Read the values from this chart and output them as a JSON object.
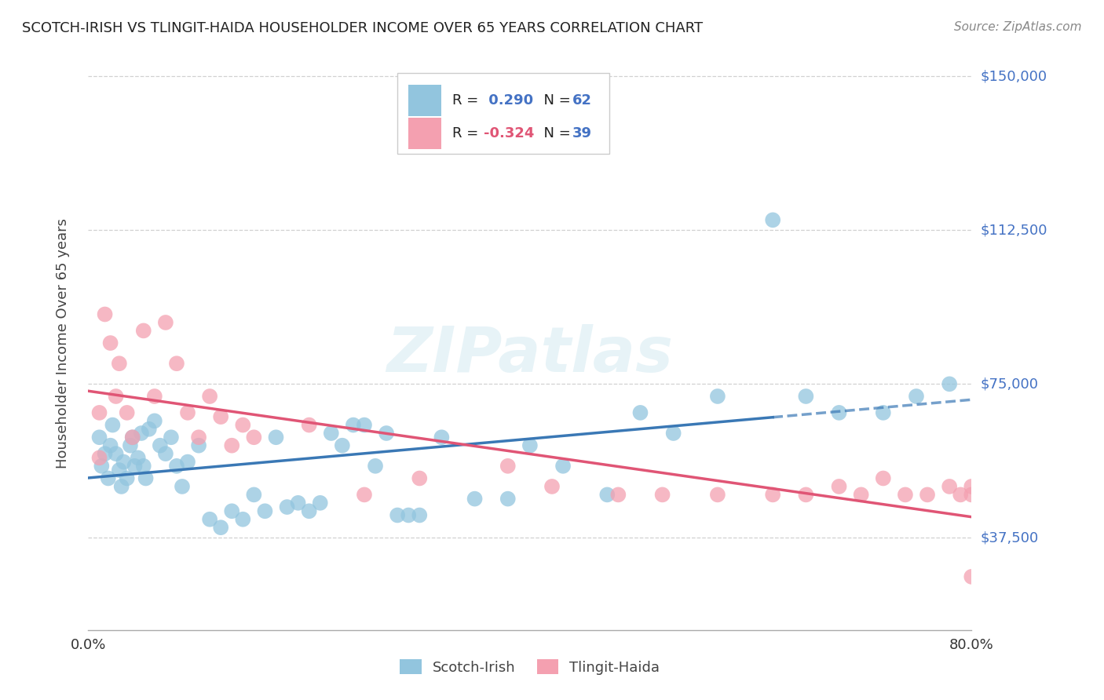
{
  "title": "SCOTCH-IRISH VS TLINGIT-HAIDA HOUSEHOLDER INCOME OVER 65 YEARS CORRELATION CHART",
  "source": "Source: ZipAtlas.com",
  "ylabel": "Householder Income Over 65 years",
  "xlim": [
    0.0,
    80.0
  ],
  "ylim": [
    15000,
    155000
  ],
  "yticks": [
    37500,
    75000,
    112500,
    150000
  ],
  "ytick_labels": [
    "$37,500",
    "$75,000",
    "$112,500",
    "$150,000"
  ],
  "xticks": [
    0,
    10,
    20,
    30,
    40,
    50,
    60,
    70,
    80
  ],
  "blue_R": 0.29,
  "blue_N": 62,
  "pink_R": -0.324,
  "pink_N": 39,
  "blue_color": "#92c5de",
  "pink_color": "#f4a0b0",
  "trend_line_color_blue": "#3a78b5",
  "trend_line_color_pink": "#e05575",
  "watermark": "ZIPatlas",
  "blue_scatter_x": [
    1.0,
    1.2,
    1.5,
    1.8,
    2.0,
    2.2,
    2.5,
    2.8,
    3.0,
    3.2,
    3.5,
    3.8,
    4.0,
    4.2,
    4.5,
    4.8,
    5.0,
    5.2,
    5.5,
    6.0,
    6.5,
    7.0,
    7.5,
    8.0,
    8.5,
    9.0,
    10.0,
    11.0,
    12.0,
    13.0,
    14.0,
    15.0,
    16.0,
    17.0,
    18.0,
    19.0,
    20.0,
    21.0,
    22.0,
    23.0,
    24.0,
    25.0,
    26.0,
    27.0,
    28.0,
    29.0,
    30.0,
    32.0,
    35.0,
    38.0,
    40.0,
    43.0,
    47.0,
    50.0,
    53.0,
    57.0,
    62.0,
    65.0,
    68.0,
    72.0,
    75.0,
    78.0
  ],
  "blue_scatter_y": [
    62000,
    55000,
    58000,
    52000,
    60000,
    65000,
    58000,
    54000,
    50000,
    56000,
    52000,
    60000,
    62000,
    55000,
    57000,
    63000,
    55000,
    52000,
    64000,
    66000,
    60000,
    58000,
    62000,
    55000,
    50000,
    56000,
    60000,
    42000,
    40000,
    44000,
    42000,
    48000,
    44000,
    62000,
    45000,
    46000,
    44000,
    46000,
    63000,
    60000,
    65000,
    65000,
    55000,
    63000,
    43000,
    43000,
    43000,
    62000,
    47000,
    47000,
    60000,
    55000,
    48000,
    68000,
    63000,
    72000,
    115000,
    72000,
    68000,
    68000,
    72000,
    75000
  ],
  "pink_scatter_x": [
    1.0,
    1.0,
    1.5,
    2.0,
    2.5,
    2.8,
    3.5,
    4.0,
    5.0,
    6.0,
    7.0,
    8.0,
    9.0,
    10.0,
    11.0,
    12.0,
    13.0,
    14.0,
    15.0,
    20.0,
    25.0,
    30.0,
    38.0,
    42.0,
    48.0,
    52.0,
    57.0,
    62.0,
    65.0,
    68.0,
    70.0,
    72.0,
    74.0,
    76.0,
    78.0,
    79.0,
    80.0,
    80.0,
    80.0
  ],
  "pink_scatter_y": [
    68000,
    57000,
    92000,
    85000,
    72000,
    80000,
    68000,
    62000,
    88000,
    72000,
    90000,
    80000,
    68000,
    62000,
    72000,
    67000,
    60000,
    65000,
    62000,
    65000,
    48000,
    52000,
    55000,
    50000,
    48000,
    48000,
    48000,
    48000,
    48000,
    50000,
    48000,
    52000,
    48000,
    48000,
    50000,
    48000,
    50000,
    48000,
    28000
  ]
}
